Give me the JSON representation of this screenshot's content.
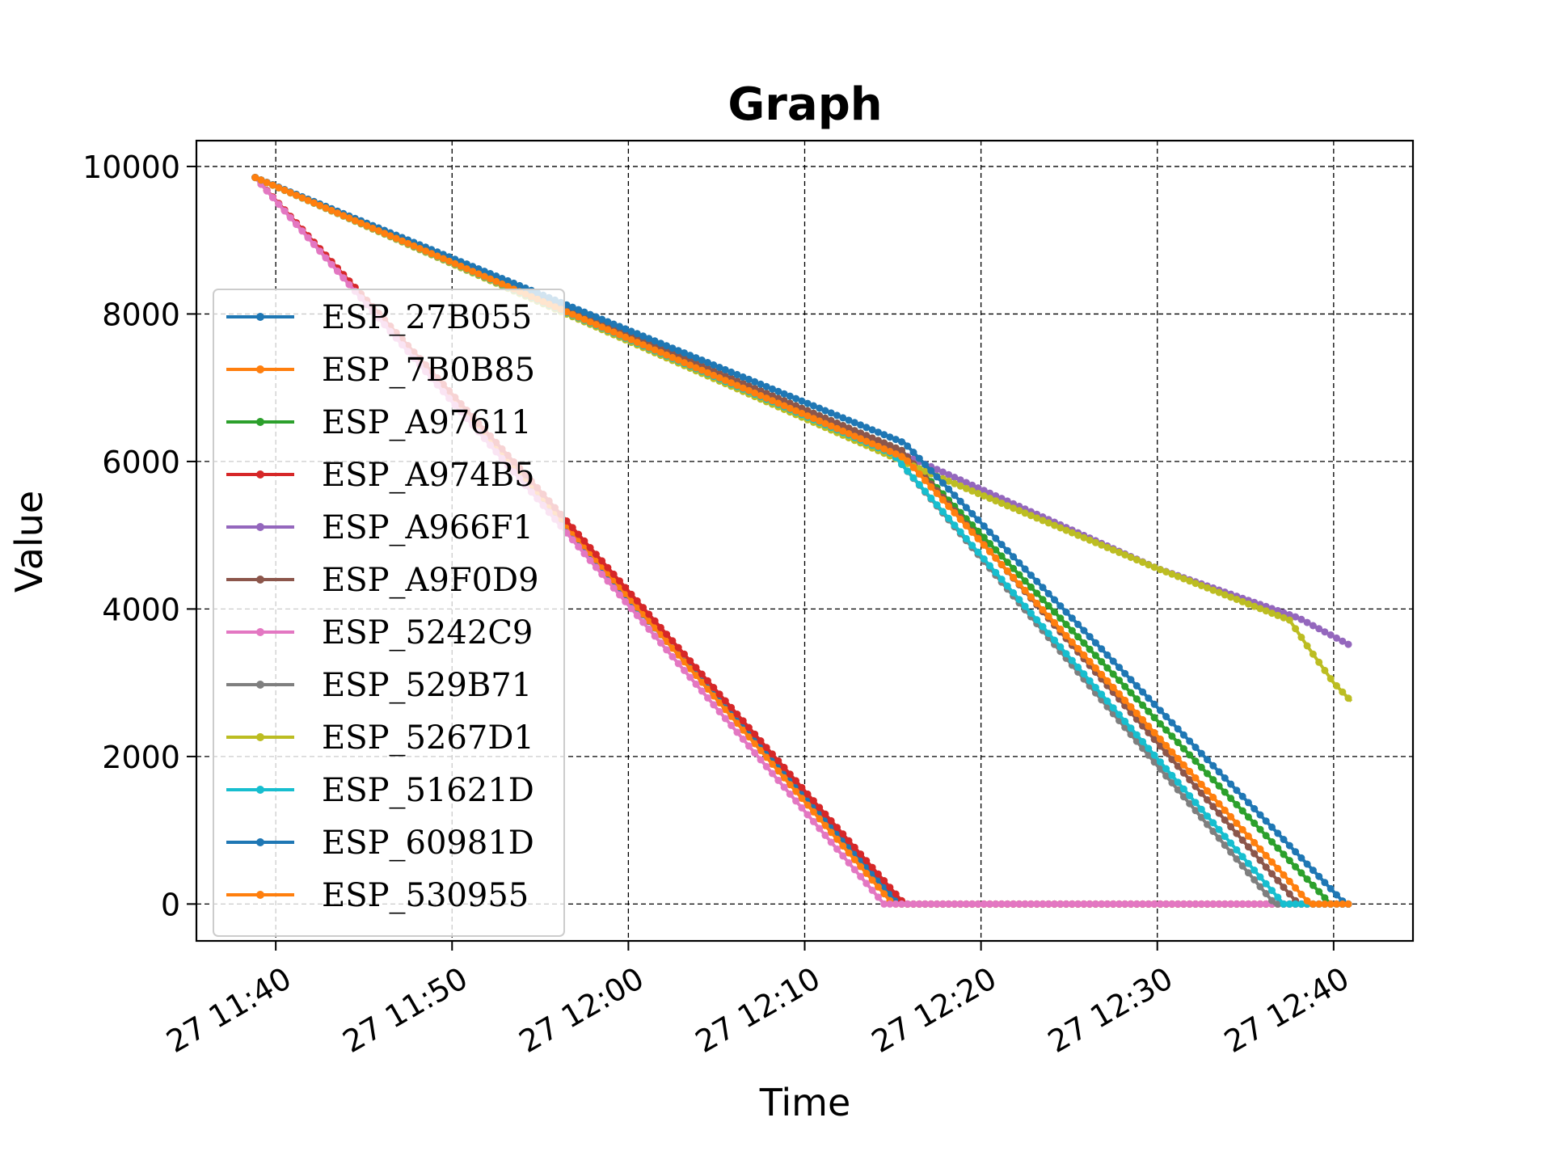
{
  "chart_data": {
    "type": "line",
    "title": "Graph",
    "xlabel": "Time",
    "ylabel": "Value",
    "xlim": [
      "27 11:35:30",
      "27 12:44:30"
    ],
    "ylim": [
      -500,
      10350
    ],
    "x_ticks": [
      "27 11:40",
      "27 11:50",
      "27 12:00",
      "27 12:10",
      "27 12:20",
      "27 12:30",
      "27 12:40"
    ],
    "y_ticks": [
      0,
      2000,
      4000,
      6000,
      8000,
      10000
    ],
    "grid": true,
    "legend": "center-left",
    "series": [
      {
        "name": "ESP_27B055",
        "color": "#1f77b4",
        "points": [
          [
            "27 11:38:50",
            9850
          ],
          [
            "27 11:55:00",
            5500
          ],
          [
            "27 12:15:20",
            0
          ],
          [
            "27 12:41:00",
            0
          ]
        ]
      },
      {
        "name": "ESP_7B0B85",
        "color": "#ff7f0e",
        "points": [
          [
            "27 11:38:50",
            9850
          ],
          [
            "27 11:55:00",
            5550
          ],
          [
            "27 12:15:00",
            0
          ],
          [
            "27 12:41:00",
            0
          ]
        ]
      },
      {
        "name": "ESP_A97611",
        "color": "#2ca02c",
        "points": [
          [
            "27 11:38:50",
            9850
          ],
          [
            "27 12:15:30",
            6150
          ],
          [
            "27 12:39:50",
            0
          ],
          [
            "27 12:41:00",
            0
          ]
        ]
      },
      {
        "name": "ESP_A974B5",
        "color": "#d62728",
        "points": [
          [
            "27 11:38:50",
            9850
          ],
          [
            "27 11:55:00",
            5600
          ],
          [
            "27 12:15:40",
            0
          ],
          [
            "27 12:41:00",
            0
          ]
        ]
      },
      {
        "name": "ESP_A966F1",
        "color": "#9467bd",
        "points": [
          [
            "27 11:38:50",
            9850
          ],
          [
            "27 12:16:30",
            6000
          ],
          [
            "27 12:30:00",
            4550
          ],
          [
            "27 12:38:00",
            3880
          ],
          [
            "27 12:41:00",
            3500
          ]
        ]
      },
      {
        "name": "ESP_A9F0D9",
        "color": "#8c564b",
        "points": [
          [
            "27 11:38:50",
            9850
          ],
          [
            "27 12:15:30",
            6150
          ],
          [
            "27 12:38:00",
            0
          ],
          [
            "27 12:41:00",
            0
          ]
        ]
      },
      {
        "name": "ESP_5242C9",
        "color": "#e377c2",
        "points": [
          [
            "27 11:38:50",
            9850
          ],
          [
            "27 11:55:00",
            5450
          ],
          [
            "27 12:14:30",
            0
          ],
          [
            "27 12:41:00",
            0
          ]
        ]
      },
      {
        "name": "ESP_529B71",
        "color": "#7f7f7f",
        "points": [
          [
            "27 11:38:50",
            9850
          ],
          [
            "27 12:15:00",
            6100
          ],
          [
            "27 12:36:40",
            0
          ],
          [
            "27 12:41:00",
            0
          ]
        ]
      },
      {
        "name": "ESP_5267D1",
        "color": "#bcbd22",
        "points": [
          [
            "27 11:38:50",
            9850
          ],
          [
            "27 12:17:00",
            5850
          ],
          [
            "27 12:30:00",
            4550
          ],
          [
            "27 12:37:30",
            3850
          ],
          [
            "27 12:38:30",
            3500
          ],
          [
            "27 12:40:00",
            3000
          ],
          [
            "27 12:41:00",
            2750
          ]
        ]
      },
      {
        "name": "ESP_51621D",
        "color": "#17becf",
        "points": [
          [
            "27 11:38:50",
            9850
          ],
          [
            "27 12:15:00",
            6100
          ],
          [
            "27 12:37:10",
            0
          ],
          [
            "27 12:41:00",
            0
          ]
        ]
      },
      {
        "name": "ESP_60981D",
        "color": "#1f77b4",
        "points": [
          [
            "27 11:38:50",
            9850
          ],
          [
            "27 12:15:40",
            6250
          ],
          [
            "27 12:40:40",
            0
          ],
          [
            "27 12:41:00",
            0
          ]
        ]
      },
      {
        "name": "ESP_530955",
        "color": "#ff7f0e",
        "points": [
          [
            "27 11:38:50",
            9850
          ],
          [
            "27 12:15:40",
            6050
          ],
          [
            "27 12:38:40",
            0
          ],
          [
            "27 12:41:00",
            0
          ]
        ]
      }
    ]
  }
}
